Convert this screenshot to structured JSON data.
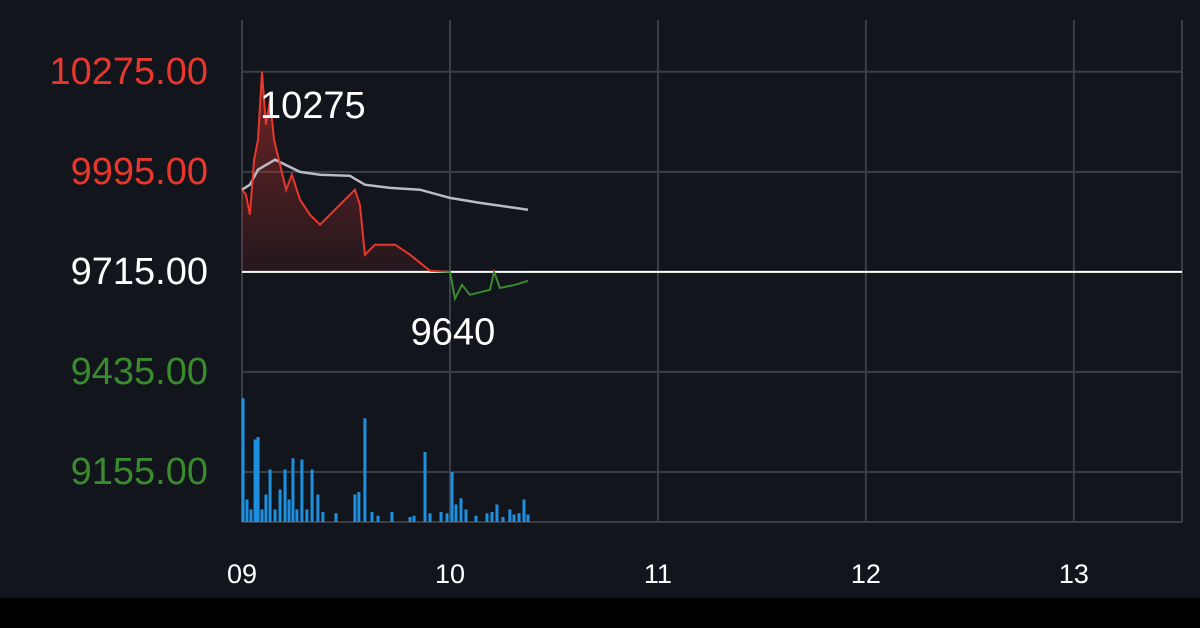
{
  "chart_data": {
    "type": "line",
    "base": 9715,
    "up_color": "#e8372c",
    "down_color": "#3a8a2e",
    "base_color": "#ffffff",
    "grid": true,
    "xlim": [
      9,
      13.52
    ],
    "xticks": [
      {
        "value": 9,
        "label": "09"
      },
      10,
      11,
      12,
      13
    ],
    "ylim": [
      9015,
      10420
    ],
    "yticks": [
      {
        "value": 10275,
        "label": "10275.00"
      },
      {
        "value": 9995,
        "label": "9995.00"
      },
      {
        "value": 9715,
        "label": "9715.00"
      },
      {
        "value": 9435,
        "label": "9435.00"
      },
      {
        "value": 9155,
        "label": "9155.00"
      }
    ],
    "price": {
      "x": [
        9.0,
        9.019,
        9.038,
        9.058,
        9.077,
        9.096,
        9.115,
        9.135,
        9.154,
        9.183,
        9.212,
        9.24,
        9.279,
        9.327,
        9.375,
        9.423,
        9.495,
        9.543,
        9.567,
        9.591,
        9.639,
        9.736,
        9.808,
        9.904,
        10.0,
        10.024,
        10.058,
        10.096,
        10.192,
        10.212,
        10.24,
        10.313,
        10.375
      ],
      "values": [
        9945,
        9931,
        9875,
        10029,
        10085,
        10275,
        10127,
        10197,
        10085,
        10015,
        9945,
        9987,
        9917,
        9875,
        9847,
        9875,
        9917,
        9945,
        9903,
        9763,
        9791,
        9791,
        9763,
        9718,
        9715,
        9640,
        9679,
        9651,
        9665,
        9715,
        9670,
        9679,
        9690
      ]
    },
    "average": {
      "color": "#b9bcc2",
      "x": [
        9.0,
        9.038,
        9.077,
        9.159,
        9.279,
        9.375,
        9.519,
        9.591,
        9.712,
        9.856,
        10.0,
        10.144,
        10.375
      ],
      "values": [
        9945,
        9959,
        10001,
        10029,
        9995,
        9987,
        9984,
        9959,
        9950,
        9945,
        9922,
        9908,
        9889
      ]
    },
    "annotations": [
      {
        "text": "10275"
      },
      {
        "text": "9640"
      }
    ],
    "volume": {
      "color": "#1e90e0",
      "ylim": [
        0,
        100
      ],
      "x": [
        9.005,
        9.024,
        9.043,
        9.063,
        9.077,
        9.096,
        9.115,
        9.135,
        9.159,
        9.183,
        9.207,
        9.226,
        9.245,
        9.264,
        9.288,
        9.312,
        9.337,
        9.365,
        9.389,
        9.452,
        9.543,
        9.562,
        9.591,
        9.625,
        9.654,
        9.721,
        9.808,
        9.827,
        9.88,
        9.904,
        9.957,
        9.986,
        10.01,
        10.029,
        10.053,
        10.077,
        10.125,
        10.178,
        10.202,
        10.226,
        10.255,
        10.288,
        10.308,
        10.332,
        10.356,
        10.375
      ],
      "values": [
        99,
        18,
        10,
        66,
        68,
        10,
        22,
        42,
        10,
        26,
        42,
        18,
        51,
        10,
        50,
        10,
        42,
        22,
        8,
        7,
        22,
        24,
        83,
        8,
        5,
        8,
        4,
        5,
        56,
        7,
        8,
        7,
        40,
        14,
        19,
        10,
        5,
        7,
        8,
        14,
        4,
        10,
        6,
        7,
        18,
        6
      ]
    }
  }
}
